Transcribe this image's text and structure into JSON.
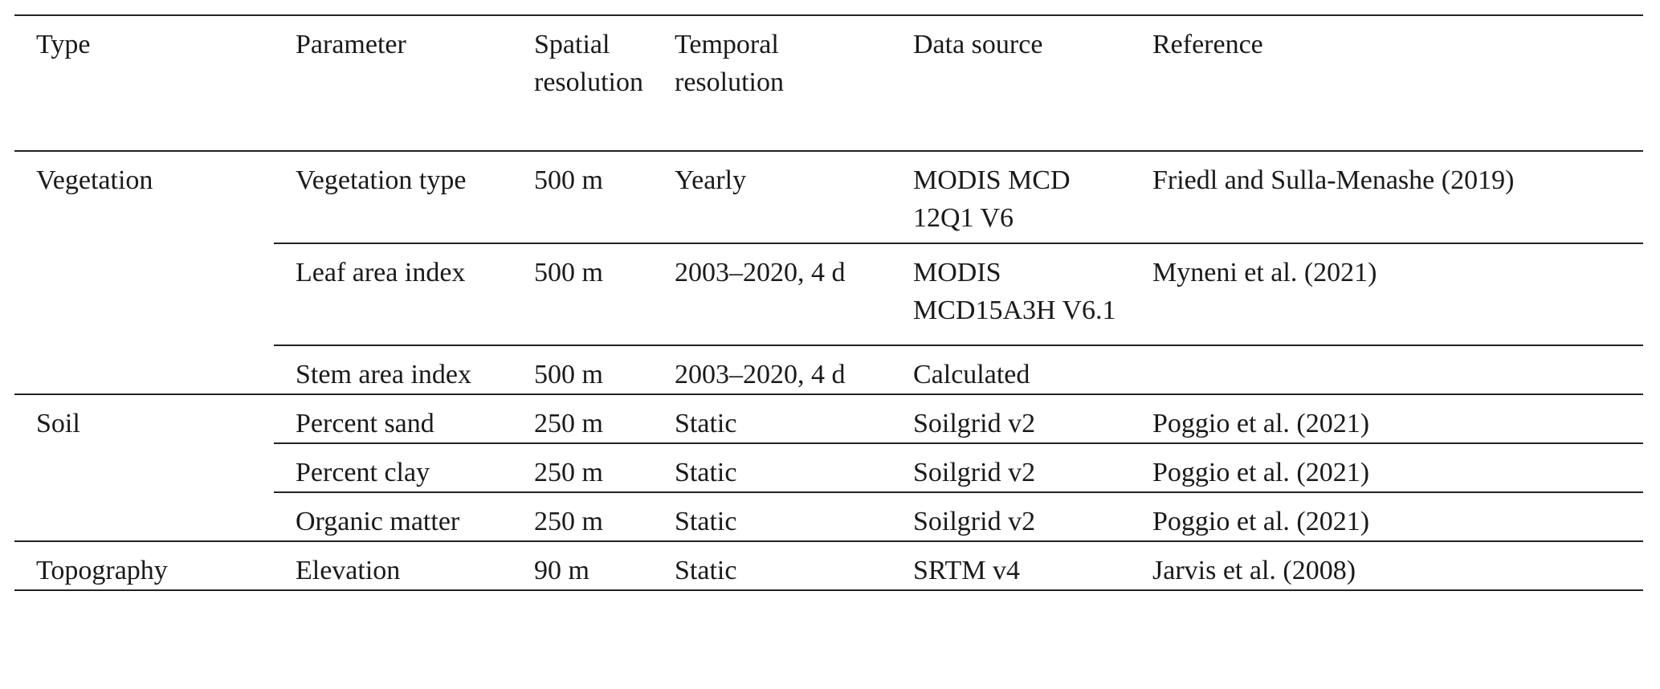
{
  "table": {
    "header": [
      "Type",
      "Parameter",
      "Spatial resolution",
      "Temporal resolution",
      "Data source",
      "Reference"
    ],
    "groups": [
      {
        "type": "Vegetation",
        "rows": [
          {
            "parameter": "Vegetation type",
            "spatial": "500 m",
            "temporal": "Yearly",
            "source": "MODIS MCD 12Q1 V6",
            "reference": "Friedl and Sulla-Menashe (2019)"
          },
          {
            "parameter": "Leaf area index",
            "spatial": "500 m",
            "temporal": "2003–2020, 4 d",
            "source": "MODIS MCD15A3H V6.1",
            "reference": "Myneni et al. (2021)"
          },
          {
            "parameter": "Stem area index",
            "spatial": "500 m",
            "temporal": "2003–2020, 4 d",
            "source": "Calculated"
          }
        ]
      },
      {
        "type": "Soil",
        "rows": [
          {
            "parameter": "Percent sand",
            "spatial": "250 m",
            "temporal": "Static",
            "source": "Soilgrid v2",
            "reference": "Poggio et al. (2021)"
          },
          {
            "parameter": "Percent clay",
            "spatial": "250 m",
            "temporal": "Static",
            "source": "Soilgrid v2",
            "reference": "Poggio et al. (2021)"
          },
          {
            "parameter": "Organic matter",
            "spatial": "250 m",
            "temporal": "Static",
            "source": "Soilgrid v2",
            "reference": "Poggio et al. (2021)"
          }
        ]
      },
      {
        "type": "Topography",
        "rows": [
          {
            "parameter": "Elevation",
            "spatial": "90 m",
            "temporal": "Static",
            "source": "SRTM v4",
            "reference": "Jarvis et al. (2008)"
          }
        ]
      }
    ]
  }
}
